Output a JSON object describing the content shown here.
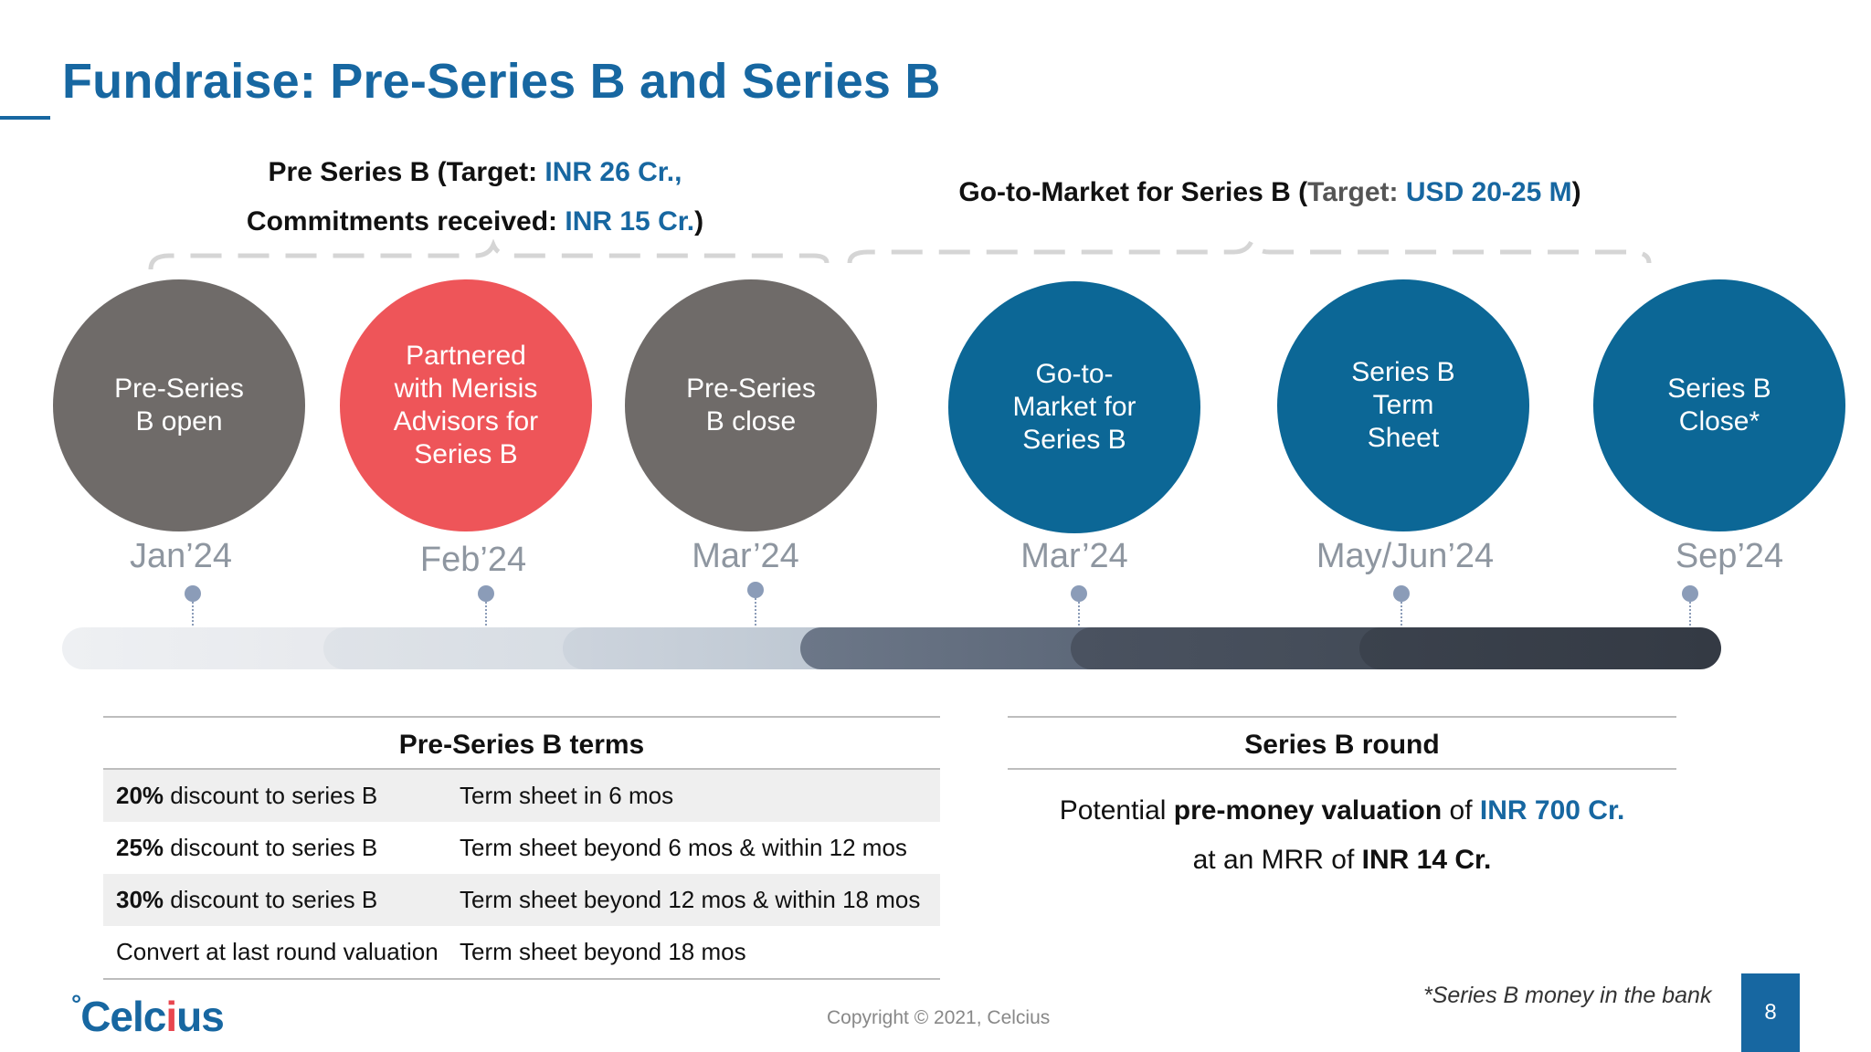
{
  "slide": {
    "title": "Fundraise: Pre-Series B and Series B",
    "page_number": "8"
  },
  "phases": {
    "pre_series_b": {
      "line1_a": "Pre Series B (Target: ",
      "line1_b": "INR 26 Cr.,",
      "line2_a": "Commitments received: ",
      "line2_b": "INR 15 Cr.",
      "line2_c": ")"
    },
    "gtm": {
      "a": "Go-to-Market for Series B (",
      "b": "Target: ",
      "c": "USD 20-25 M",
      "d": ")"
    }
  },
  "milestones": [
    {
      "label": "Pre-Series\nB open",
      "date": "Jan’24",
      "color": "#6f6b69"
    },
    {
      "label": "Partnered\nwith Merisis\nAdvisors for\nSeries B",
      "date": "Feb’24",
      "color": "#ee5559"
    },
    {
      "label": "Pre-Series\nB close",
      "date": "Mar’24",
      "color": "#6f6b69"
    },
    {
      "label": "Go-to-\nMarket for\nSeries B",
      "date": "Mar’24",
      "color": "#0c6796"
    },
    {
      "label": "Series B\nTerm\nSheet",
      "date": "May/Jun’24",
      "color": "#0c6796"
    },
    {
      "label": "Series B\nClose*",
      "date": "Sep’24",
      "color": "#0c6796"
    }
  ],
  "pre_series_terms": {
    "title": "Pre-Series B terms",
    "rows": [
      {
        "bold": "20%",
        "rest": " discount to series B",
        "term": "Term sheet in 6 mos"
      },
      {
        "bold": "25%",
        "rest": " discount to series B",
        "term": "Term sheet beyond 6 mos & within 12 mos"
      },
      {
        "bold": "30%",
        "rest": " discount to series B",
        "term": "Term sheet beyond 12 mos & within 18 mos"
      },
      {
        "bold": "",
        "rest": "Convert at last round valuation",
        "term": "Term sheet beyond 18 mos"
      }
    ]
  },
  "series_b_round": {
    "title": "Series B round",
    "line1_a": "Potential ",
    "line1_b": "pre-money valuation",
    "line1_c": " of ",
    "line1_d": "INR 700 Cr.",
    "line2_a": "at an MRR of ",
    "line2_b": "INR 14 Cr."
  },
  "footer": {
    "footnote": "*Series B money in the bank",
    "copyright": "Copyright © 2021, Celcius",
    "logo_deg": "°",
    "logo_a": "Celc",
    "logo_b": "i",
    "logo_c": "us"
  },
  "colors": {
    "brand_blue": "#1767a1",
    "grey_circle": "#6f6b69",
    "red_circle": "#ee5559",
    "blue_circle": "#0c6796"
  }
}
